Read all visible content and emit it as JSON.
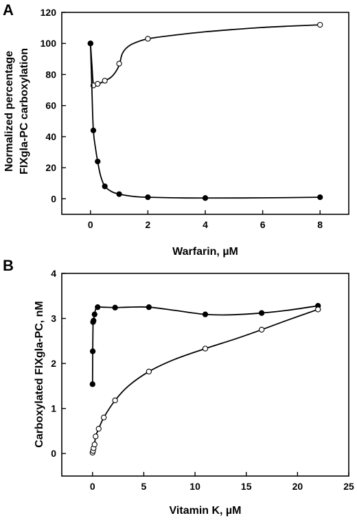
{
  "chart_data": [
    {
      "type": "line",
      "panel": "A",
      "xlabel": "Warfarin, µM",
      "ylabel": [
        "Normalized percentage",
        "FIXgla-PC carboxylation"
      ],
      "xlim": [
        -1,
        9
      ],
      "ylim": [
        -10,
        120
      ],
      "xticks": [
        0,
        2,
        4,
        6,
        8
      ],
      "yticks": [
        0,
        20,
        40,
        60,
        80,
        100,
        120
      ],
      "grid": false,
      "series": [
        {
          "marker": "open-circle",
          "x": [
            0,
            0.1,
            0.25,
            0.5,
            1,
            2,
            8
          ],
          "y": [
            100,
            73,
            74,
            76,
            87,
            103,
            112
          ],
          "curve": [
            [
              0,
              100
            ],
            [
              0.05,
              86
            ],
            [
              0.1,
              74
            ],
            [
              0.2,
              73.5
            ],
            [
              0.35,
              74.5
            ],
            [
              0.5,
              76
            ],
            [
              0.7,
              78
            ],
            [
              0.85,
              81
            ],
            [
              1.0,
              86
            ],
            [
              1.1,
              93
            ],
            [
              1.25,
              97
            ],
            [
              1.5,
              100
            ],
            [
              2,
              103
            ],
            [
              3,
              105.5
            ],
            [
              4,
              107.5
            ],
            [
              5,
              109
            ],
            [
              6,
              110.3
            ],
            [
              7,
              111.2
            ],
            [
              8,
              112
            ]
          ]
        },
        {
          "marker": "filled-circle",
          "x": [
            0,
            0.1,
            0.25,
            0.5,
            1,
            2,
            4,
            8
          ],
          "y": [
            100,
            44,
            24,
            8,
            3,
            1,
            0.5,
            1
          ],
          "curve": [
            [
              0,
              100
            ],
            [
              0.05,
              70
            ],
            [
              0.1,
              44
            ],
            [
              0.18,
              32
            ],
            [
              0.25,
              24
            ],
            [
              0.35,
              15
            ],
            [
              0.5,
              8
            ],
            [
              0.75,
              4.5
            ],
            [
              1,
              3
            ],
            [
              1.5,
              1.5
            ],
            [
              2,
              1
            ],
            [
              3,
              0.6
            ],
            [
              4,
              0.5
            ],
            [
              6,
              0.6
            ],
            [
              8,
              1
            ]
          ]
        }
      ]
    },
    {
      "type": "line",
      "panel": "B",
      "xlabel": "Vitamin K, µM",
      "ylabel": [
        "Carboxylated FIXgla-PC, nM"
      ],
      "xlim": [
        -3,
        25
      ],
      "ylim": [
        -0.5,
        4
      ],
      "xticks": [
        0,
        5,
        10,
        15,
        20,
        25
      ],
      "yticks": [
        0,
        1,
        2,
        3,
        4
      ],
      "grid": false,
      "series": [
        {
          "marker": "filled-circle",
          "x": [
            0,
            0.02,
            0.05,
            0.1,
            0.2,
            0.5,
            2.2,
            5.5,
            11,
            16.5,
            22
          ],
          "y": [
            1.54,
            2.27,
            2.92,
            2.95,
            3.09,
            3.25,
            3.24,
            3.25,
            3.09,
            3.12,
            3.28
          ],
          "curve": [
            [
              0,
              1.54
            ],
            [
              0.02,
              2.27
            ],
            [
              0.05,
              2.92
            ],
            [
              0.1,
              2.97
            ],
            [
              0.2,
              3.09
            ],
            [
              0.3,
              3.2
            ],
            [
              0.5,
              3.25
            ],
            [
              1,
              3.25
            ],
            [
              2.2,
              3.24
            ],
            [
              3.5,
              3.25
            ],
            [
              5.5,
              3.25
            ],
            [
              8,
              3.18
            ],
            [
              11,
              3.09
            ],
            [
              13.5,
              3.08
            ],
            [
              16.5,
              3.12
            ],
            [
              19,
              3.18
            ],
            [
              22,
              3.28
            ]
          ]
        },
        {
          "marker": "open-circle",
          "x": [
            0,
            0.05,
            0.1,
            0.2,
            0.3,
            0.6,
            1.1,
            2.2,
            5.5,
            11,
            16.5,
            22
          ],
          "y": [
            0.02,
            0.06,
            0.12,
            0.2,
            0.38,
            0.55,
            0.8,
            1.18,
            1.82,
            2.33,
            2.75,
            3.2
          ],
          "curve": [
            [
              0,
              0.02
            ],
            [
              0.05,
              0.06
            ],
            [
              0.1,
              0.12
            ],
            [
              0.2,
              0.2
            ],
            [
              0.3,
              0.38
            ],
            [
              0.6,
              0.55
            ],
            [
              1.1,
              0.8
            ],
            [
              2.2,
              1.18
            ],
            [
              3.5,
              1.5
            ],
            [
              5.5,
              1.82
            ],
            [
              8,
              2.09
            ],
            [
              11,
              2.33
            ],
            [
              14,
              2.55
            ],
            [
              16.5,
              2.75
            ],
            [
              19,
              2.96
            ],
            [
              22,
              3.2
            ]
          ]
        }
      ]
    }
  ],
  "panels": [
    {
      "letter": "A"
    },
    {
      "letter": "B"
    }
  ]
}
